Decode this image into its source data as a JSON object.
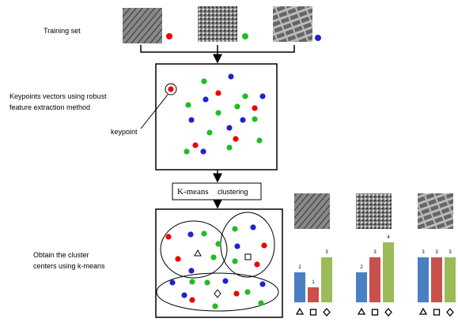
{
  "training_label": "Training set",
  "keypoints_label": [
    "Keypoints vectors using robust",
    "feature extraction method"
  ],
  "keypoint_label": "keypoint",
  "kmeans_box": {
    "title": "K-means",
    "subtitle": "clustering"
  },
  "obtain_label": [
    "Obtain the cluster",
    "centers using k-means"
  ],
  "histograms": {
    "colors": [
      "#4a7fc1",
      "#c8504d",
      "#9bbb59"
    ],
    "charts": [
      {
        "values": [
          2,
          1,
          3
        ]
      },
      {
        "values": [
          2,
          3,
          4
        ]
      },
      {
        "values": [
          3,
          3,
          3
        ]
      }
    ]
  }
}
